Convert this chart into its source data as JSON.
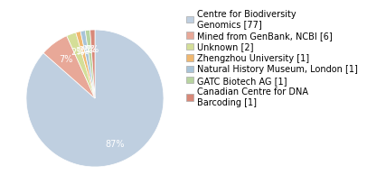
{
  "labels": [
    "Centre for Biodiversity\nGenomics [77]",
    "Mined from GenBank, NCBI [6]",
    "Unknown [2]",
    "Zhengzhou University [1]",
    "Natural History Museum, London [1]",
    "GATC Biotech AG [1]",
    "Canadian Centre for DNA\nBarcoding [1]"
  ],
  "values": [
    77,
    6,
    2,
    1,
    1,
    1,
    1
  ],
  "colors": [
    "#bfcfe0",
    "#e8a898",
    "#d4de98",
    "#f0b870",
    "#a8c4d8",
    "#b8d4a0",
    "#d88878"
  ],
  "startangle": 90,
  "background_color": "#ffffff",
  "text_color": "#ffffff",
  "fontsize": 7.0,
  "legend_fontsize": 7.0
}
